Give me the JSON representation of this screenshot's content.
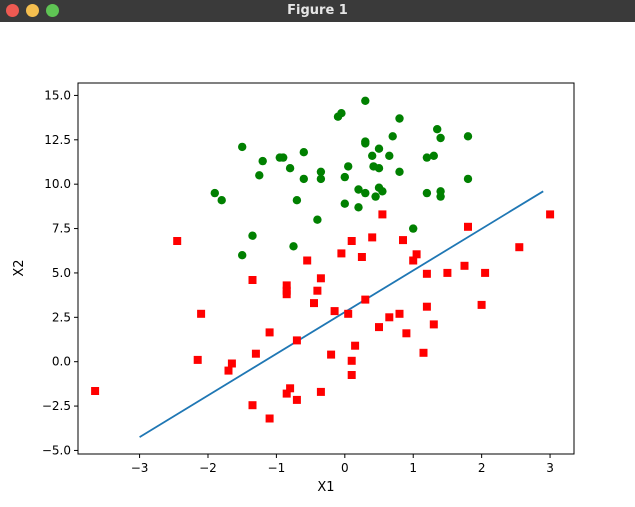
{
  "window": {
    "title": "Figure 1",
    "controls": [
      "close-icon",
      "minimize-icon",
      "maximize-icon"
    ]
  },
  "chart_data": {
    "type": "scatter",
    "title": "",
    "xlabel": "X1",
    "ylabel": "X2",
    "xlim": [
      -3.9,
      3.35
    ],
    "ylim": [
      -5.2,
      15.7
    ],
    "grid": false,
    "xticks": [
      -3,
      -2,
      -1,
      0,
      1,
      2,
      3
    ],
    "xtick_labels": [
      "−3",
      "−2",
      "−1",
      "0",
      "1",
      "2",
      "3"
    ],
    "yticks": [
      -5.0,
      -2.5,
      0.0,
      2.5,
      5.0,
      7.5,
      10.0,
      12.5,
      15.0
    ],
    "ytick_labels": [
      "−5.0",
      "−2.5",
      "0.0",
      "2.5",
      "5.0",
      "7.5",
      "10.0",
      "12.5",
      "15.0"
    ],
    "series": [
      {
        "marker": "circle",
        "color": "#008000",
        "points": [
          [
            -1.5,
            12.1
          ],
          [
            -1.2,
            11.3
          ],
          [
            -0.95,
            11.5
          ],
          [
            -0.9,
            11.5
          ],
          [
            -0.6,
            11.8
          ],
          [
            -0.8,
            10.9
          ],
          [
            -1.25,
            10.5
          ],
          [
            -0.6,
            10.3
          ],
          [
            -0.35,
            10.3
          ],
          [
            -0.35,
            10.7
          ],
          [
            -1.9,
            9.5
          ],
          [
            -1.8,
            9.1
          ],
          [
            -0.7,
            9.1
          ],
          [
            -0.4,
            8.0
          ],
          [
            -1.35,
            7.1
          ],
          [
            -1.5,
            6.0
          ],
          [
            -0.75,
            6.5
          ],
          [
            -0.05,
            14.0
          ],
          [
            -0.1,
            13.8
          ],
          [
            0.3,
            14.7
          ],
          [
            0.8,
            13.7
          ],
          [
            0.3,
            12.3
          ],
          [
            0.3,
            12.4
          ],
          [
            0.5,
            12.0
          ],
          [
            0.7,
            12.7
          ],
          [
            1.35,
            13.1
          ],
          [
            1.4,
            12.6
          ],
          [
            1.8,
            12.7
          ],
          [
            0.4,
            11.6
          ],
          [
            0.65,
            11.6
          ],
          [
            1.2,
            11.5
          ],
          [
            1.3,
            11.6
          ],
          [
            0.05,
            11.0
          ],
          [
            0.42,
            11.0
          ],
          [
            0.5,
            10.9
          ],
          [
            0.8,
            10.7
          ],
          [
            0.0,
            10.4
          ],
          [
            1.8,
            10.3
          ],
          [
            0.2,
            9.7
          ],
          [
            0.3,
            9.5
          ],
          [
            0.5,
            9.8
          ],
          [
            0.55,
            9.6
          ],
          [
            0.45,
            9.3
          ],
          [
            1.2,
            9.5
          ],
          [
            1.4,
            9.3
          ],
          [
            1.4,
            9.6
          ],
          [
            0.0,
            8.9
          ],
          [
            0.2,
            8.7
          ],
          [
            1.0,
            7.5
          ]
        ]
      },
      {
        "marker": "square",
        "color": "#ff0000",
        "points": [
          [
            -3.65,
            -1.65
          ],
          [
            -2.45,
            6.8
          ],
          [
            -2.1,
            2.7
          ],
          [
            -2.15,
            0.1
          ],
          [
            -1.65,
            -0.1
          ],
          [
            -1.7,
            -0.5
          ],
          [
            -1.35,
            4.6
          ],
          [
            -1.3,
            0.45
          ],
          [
            -1.35,
            -2.45
          ],
          [
            -1.1,
            1.65
          ],
          [
            -1.1,
            -3.2
          ],
          [
            -0.85,
            4.3
          ],
          [
            -0.85,
            4.0
          ],
          [
            -0.85,
            3.8
          ],
          [
            -0.8,
            -1.5
          ],
          [
            -0.85,
            -1.8
          ],
          [
            -0.7,
            1.2
          ],
          [
            -0.7,
            -2.15
          ],
          [
            -0.55,
            5.7
          ],
          [
            -0.45,
            3.3
          ],
          [
            -0.4,
            4.0
          ],
          [
            -0.35,
            4.7
          ],
          [
            -0.35,
            -1.7
          ],
          [
            -0.2,
            0.4
          ],
          [
            -0.15,
            2.85
          ],
          [
            -0.05,
            6.1
          ],
          [
            0.05,
            2.7
          ],
          [
            0.1,
            6.8
          ],
          [
            0.1,
            0.05
          ],
          [
            0.15,
            0.9
          ],
          [
            0.1,
            -0.75
          ],
          [
            0.25,
            5.9
          ],
          [
            0.3,
            3.5
          ],
          [
            0.4,
            7.0
          ],
          [
            0.55,
            8.3
          ],
          [
            0.5,
            1.95
          ],
          [
            0.65,
            2.5
          ],
          [
            0.8,
            2.7
          ],
          [
            0.85,
            6.85
          ],
          [
            0.9,
            1.6
          ],
          [
            1.0,
            5.7
          ],
          [
            1.05,
            6.05
          ],
          [
            1.15,
            0.5
          ],
          [
            1.2,
            3.1
          ],
          [
            1.2,
            4.95
          ],
          [
            1.3,
            2.1
          ],
          [
            1.5,
            5.0
          ],
          [
            1.75,
            5.4
          ],
          [
            1.8,
            7.6
          ],
          [
            2.0,
            3.2
          ],
          [
            2.05,
            5.0
          ],
          [
            2.55,
            6.45
          ],
          [
            3.0,
            8.3
          ]
        ]
      }
    ],
    "lines": [
      {
        "color": "#1f77b4",
        "points": [
          [
            -3.0,
            -4.25
          ],
          [
            2.9,
            9.6
          ]
        ]
      }
    ]
  }
}
